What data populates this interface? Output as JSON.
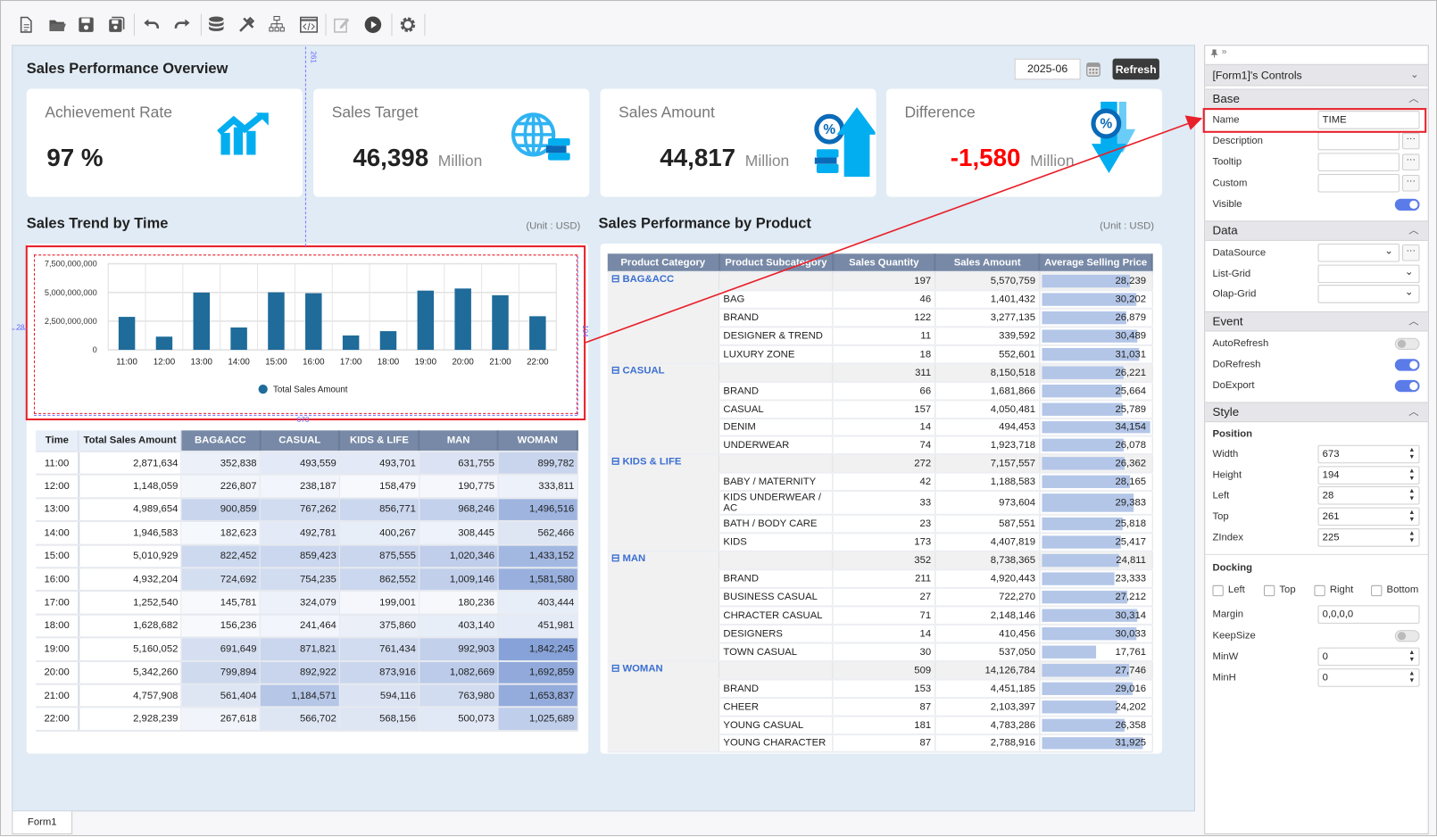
{
  "toolbar": {
    "icons": [
      "new-file-icon",
      "open-folder-icon",
      "save-icon",
      "save-all-icon",
      "undo-icon",
      "redo-icon",
      "database-icon",
      "tools-icon",
      "hierarchy-icon",
      "code-window-icon",
      "edit-icon",
      "run-icon",
      "settings-icon"
    ]
  },
  "dashboard": {
    "title": "Sales Performance Overview",
    "date_value": "2025-06",
    "refresh_label": "Refresh",
    "kpis": [
      {
        "label": "Achievement Rate",
        "value": "97 %",
        "unit": "",
        "icon": "trend-chart-icon"
      },
      {
        "label": "Sales Target",
        "value": "46,398",
        "unit": "Million",
        "icon": "globe-icon"
      },
      {
        "label": "Sales Amount",
        "value": "44,817",
        "unit": "Million",
        "icon": "percent-up-arrow-icon"
      },
      {
        "label": "Difference",
        "value": "-1,580",
        "unit": "Million",
        "icon": "percent-down-arrow-icon",
        "value_color": "#ff0000"
      }
    ],
    "trend_title": "Sales Trend by Time",
    "trend_unit": "(Unit : USD)",
    "product_title": "Sales Performance by Product",
    "product_unit": "(Unit : USD)",
    "guides": {
      "top": "261",
      "left": "28",
      "width": "673",
      "height": "194"
    }
  },
  "chart_data": {
    "type": "bar",
    "categories": [
      "11:00",
      "12:00",
      "13:00",
      "14:00",
      "15:00",
      "16:00",
      "17:00",
      "18:00",
      "19:00",
      "20:00",
      "21:00",
      "22:00"
    ],
    "series": [
      {
        "name": "Total Sales Amount",
        "color": "#1f6b9a",
        "values": [
          2871634000,
          1148059000,
          4989654000,
          1946583000,
          5010929000,
          4932204000,
          1252540000,
          1628682000,
          5160052000,
          5342260000,
          4757908000,
          2928239000
        ]
      }
    ],
    "yticks": [
      "0",
      "2,500,000,000",
      "5,000,000,000",
      "7,500,000,000"
    ],
    "ylim": [
      0,
      7500000000
    ],
    "grid": true,
    "legend": "bottom"
  },
  "time_table": {
    "headers": [
      "Time",
      "Total Sales Amount",
      "BAG&ACC",
      "CASUAL",
      "KIDS & LIFE",
      "MAN",
      "WOMAN"
    ],
    "heat_color": "#86a2d8",
    "rows": [
      [
        "11:00",
        "2,871,634",
        "352,838",
        "493,559",
        "493,701",
        "631,755",
        "899,782"
      ],
      [
        "12:00",
        "1,148,059",
        "226,807",
        "238,187",
        "158,479",
        "190,775",
        "333,811"
      ],
      [
        "13:00",
        "4,989,654",
        "900,859",
        "767,262",
        "856,771",
        "968,246",
        "1,496,516"
      ],
      [
        "14:00",
        "1,946,583",
        "182,623",
        "492,781",
        "400,267",
        "308,445",
        "562,466"
      ],
      [
        "15:00",
        "5,010,929",
        "822,452",
        "859,423",
        "875,555",
        "1,020,346",
        "1,433,152"
      ],
      [
        "16:00",
        "4,932,204",
        "724,692",
        "754,235",
        "862,552",
        "1,009,146",
        "1,581,580"
      ],
      [
        "17:00",
        "1,252,540",
        "145,781",
        "324,079",
        "199,001",
        "180,236",
        "403,444"
      ],
      [
        "18:00",
        "1,628,682",
        "156,236",
        "241,464",
        "375,860",
        "403,140",
        "451,981"
      ],
      [
        "19:00",
        "5,160,052",
        "691,649",
        "871,821",
        "761,434",
        "992,903",
        "1,842,245"
      ],
      [
        "20:00",
        "5,342,260",
        "799,894",
        "892,922",
        "873,916",
        "1,082,669",
        "1,692,859"
      ],
      [
        "21:00",
        "4,757,908",
        "561,404",
        "1,184,571",
        "594,116",
        "763,980",
        "1,653,837"
      ],
      [
        "22:00",
        "2,928,239",
        "267,618",
        "566,702",
        "568,156",
        "500,073",
        "1,025,689"
      ]
    ]
  },
  "product_table": {
    "headers": [
      "Product Category",
      "Product Subcategory",
      "Sales Quantity",
      "Sales Amount",
      "Average Selling Price"
    ],
    "bar_color": "#b3c6e8",
    "groups": [
      {
        "category": "BAG&ACC",
        "qty": "197",
        "amount": "5,570,759",
        "avg": "28,239",
        "items": [
          {
            "name": "BAG",
            "qty": "46",
            "amount": "1,401,432",
            "avg": "30,202"
          },
          {
            "name": "BRAND",
            "qty": "122",
            "amount": "3,277,135",
            "avg": "26,879"
          },
          {
            "name": "DESIGNER & TREND",
            "qty": "11",
            "amount": "339,592",
            "avg": "30,489"
          },
          {
            "name": "LUXURY ZONE",
            "qty": "18",
            "amount": "552,601",
            "avg": "31,031"
          }
        ]
      },
      {
        "category": "CASUAL",
        "qty": "311",
        "amount": "8,150,518",
        "avg": "26,221",
        "items": [
          {
            "name": "BRAND",
            "qty": "66",
            "amount": "1,681,866",
            "avg": "25,664"
          },
          {
            "name": "CASUAL",
            "qty": "157",
            "amount": "4,050,481",
            "avg": "25,789"
          },
          {
            "name": "DENIM",
            "qty": "14",
            "amount": "494,453",
            "avg": "34,154"
          },
          {
            "name": "UNDERWEAR",
            "qty": "74",
            "amount": "1,923,718",
            "avg": "26,078"
          }
        ]
      },
      {
        "category": "KIDS & LIFE",
        "qty": "272",
        "amount": "7,157,557",
        "avg": "26,362",
        "items": [
          {
            "name": "BABY / MATERNITY",
            "qty": "42",
            "amount": "1,188,583",
            "avg": "28,165"
          },
          {
            "name": "KIDS UNDERWEAR / AC",
            "qty": "33",
            "amount": "973,604",
            "avg": "29,383"
          },
          {
            "name": "BATH / BODY CARE",
            "qty": "23",
            "amount": "587,551",
            "avg": "25,818"
          },
          {
            "name": "KIDS",
            "qty": "173",
            "amount": "4,407,819",
            "avg": "25,417"
          }
        ]
      },
      {
        "category": "MAN",
        "qty": "352",
        "amount": "8,738,365",
        "avg": "24,811",
        "items": [
          {
            "name": "BRAND",
            "qty": "211",
            "amount": "4,920,443",
            "avg": "23,333"
          },
          {
            "name": "BUSINESS CASUAL",
            "qty": "27",
            "amount": "722,270",
            "avg": "27,212"
          },
          {
            "name": "CHRACTER CASUAL",
            "qty": "71",
            "amount": "2,148,146",
            "avg": "30,314"
          },
          {
            "name": "DESIGNERS",
            "qty": "14",
            "amount": "410,456",
            "avg": "30,033"
          },
          {
            "name": "TOWN CASUAL",
            "qty": "30",
            "amount": "537,050",
            "avg": "17,761"
          }
        ]
      },
      {
        "category": "WOMAN",
        "qty": "509",
        "amount": "14,126,784",
        "avg": "27,746",
        "items": [
          {
            "name": "BRAND",
            "qty": "153",
            "amount": "4,451,185",
            "avg": "29,016"
          },
          {
            "name": "CHEER",
            "qty": "87",
            "amount": "2,103,397",
            "avg": "24,202"
          },
          {
            "name": "YOUNG CASUAL",
            "qty": "181",
            "amount": "4,783,286",
            "avg": "26,358"
          },
          {
            "name": "YOUNG CHARACTER",
            "qty": "87",
            "amount": "2,788,916",
            "avg": "31,925"
          }
        ]
      }
    ]
  },
  "form_tab": "Form1",
  "properties": {
    "title": "[Form1]'s Controls",
    "sections": {
      "base": "Base",
      "data": "Data",
      "event": "Event",
      "style": "Style"
    },
    "base": {
      "name_label": "Name",
      "name_value": "TIME",
      "description_label": "Description",
      "tooltip_label": "Tooltip",
      "custom_label": "Custom",
      "visible_label": "Visible",
      "visible": true
    },
    "data": {
      "datasource_label": "DataSource",
      "listgrid_label": "List-Grid",
      "olapgrid_label": "Olap-Grid"
    },
    "event": {
      "autorefresh_label": "AutoRefresh",
      "autorefresh": false,
      "dorefresh_label": "DoRefresh",
      "dorefresh": true,
      "doexport_label": "DoExport",
      "doexport": true
    },
    "style": {
      "position_label": "Position",
      "width_label": "Width",
      "width": "673",
      "height_label": "Height",
      "height": "194",
      "left_label": "Left",
      "left": "28",
      "top_label": "Top",
      "top": "261",
      "zindex_label": "ZIndex",
      "zindex": "225",
      "docking_label": "Docking",
      "dock_left": "Left",
      "dock_top": "Top",
      "dock_right": "Right",
      "dock_bottom": "Bottom",
      "margin_label": "Margin",
      "margin": "0,0,0,0",
      "keepsize_label": "KeepSize",
      "keepsize": false,
      "minw_label": "MinW",
      "minw": "0",
      "minh_label": "MinH",
      "minh": "0"
    }
  },
  "annotation_color": "#e8202a"
}
